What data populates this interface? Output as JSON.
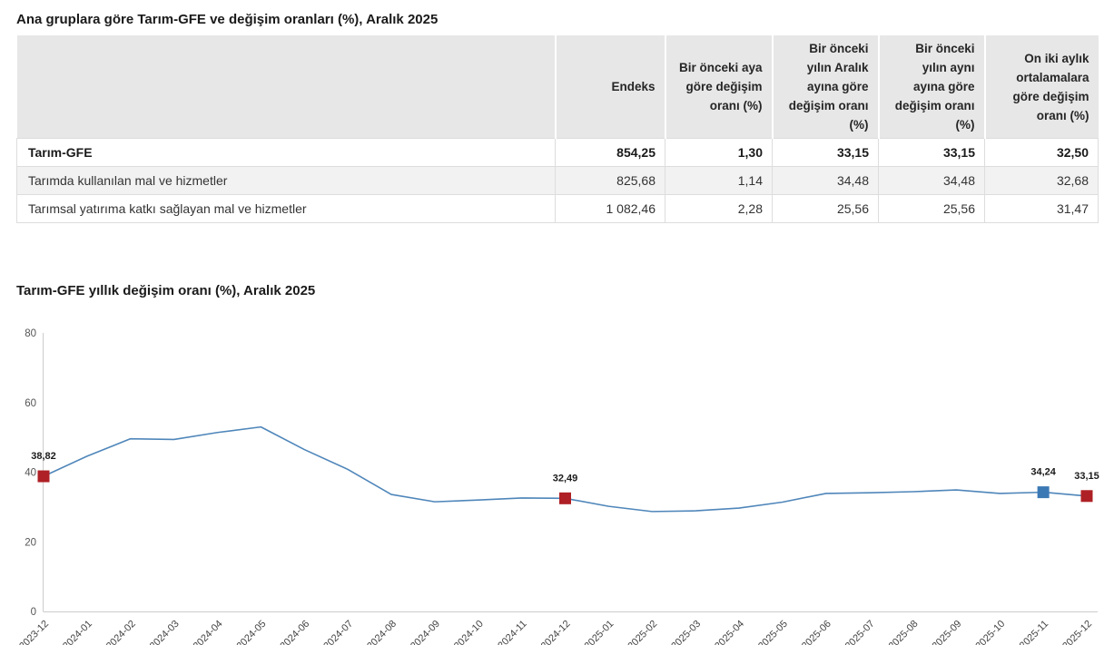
{
  "table_section": {
    "title": "Ana gruplara göre Tarım-GFE ve değişim oranları (%), Aralık 2025",
    "columns": [
      "",
      "Endeks",
      "Bir önceki aya göre değişim oranı (%)",
      "Bir önceki yılın Aralık ayına göre değişim oranı (%)",
      "Bir önceki yılın aynı ayına göre değişim oranı (%)",
      "On iki aylık ortalamalara göre değişim oranı (%)"
    ],
    "rows": [
      {
        "label": "Tarım-GFE",
        "emphasis": true,
        "values": [
          "854,25",
          "1,30",
          "33,15",
          "33,15",
          "32,50"
        ]
      },
      {
        "label": "Tarımda kullanılan mal ve hizmetler",
        "emphasis": false,
        "values": [
          "825,68",
          "1,14",
          "34,48",
          "34,48",
          "32,68"
        ]
      },
      {
        "label": "Tarımsal yatırıma katkı sağlayan mal ve hizmetler",
        "emphasis": false,
        "values": [
          "1 082,46",
          "2,28",
          "25,56",
          "25,56",
          "31,47"
        ]
      }
    ]
  },
  "chart_data": {
    "type": "line",
    "title": "Tarım-GFE yıllık değişim oranı (%), Aralık 2025",
    "x": [
      "2023-12",
      "2024-01",
      "2024-02",
      "2024-03",
      "2024-04",
      "2024-05",
      "2024-06",
      "2024-07",
      "2024-08",
      "2024-09",
      "2024-10",
      "2024-11",
      "2024-12",
      "2025-01",
      "2025-02",
      "2025-03",
      "2025-04",
      "2025-05",
      "2025-06",
      "2025-07",
      "2025-08",
      "2025-09",
      "2025-10",
      "2025-11",
      "2025-12"
    ],
    "values": [
      38.82,
      44.6,
      49.6,
      49.4,
      51.4,
      53.0,
      46.5,
      40.8,
      33.6,
      31.5,
      32.0,
      32.6,
      32.49,
      30.2,
      28.7,
      28.9,
      29.7,
      31.4,
      33.9,
      34.1,
      34.4,
      34.9,
      33.9,
      34.24,
      33.15
    ],
    "ylim": [
      0,
      80
    ],
    "yticks": [
      0,
      20,
      40,
      60,
      80
    ],
    "grid": false,
    "legend": false,
    "line_color": "#4f86ba",
    "axis_color": "#cccccc",
    "ytick_color": "#555555",
    "xtick_color": "#444444",
    "label_color": "#1a1a1a",
    "labeled_points": [
      {
        "index": 0,
        "label": "38,82",
        "marker_color": "#ae2025"
      },
      {
        "index": 12,
        "label": "32,49",
        "marker_color": "#ae2025"
      },
      {
        "index": 23,
        "label": "34,24",
        "marker_color": "#3b79b5"
      },
      {
        "index": 24,
        "label": "33,15",
        "marker_color": "#ae2025"
      }
    ]
  }
}
